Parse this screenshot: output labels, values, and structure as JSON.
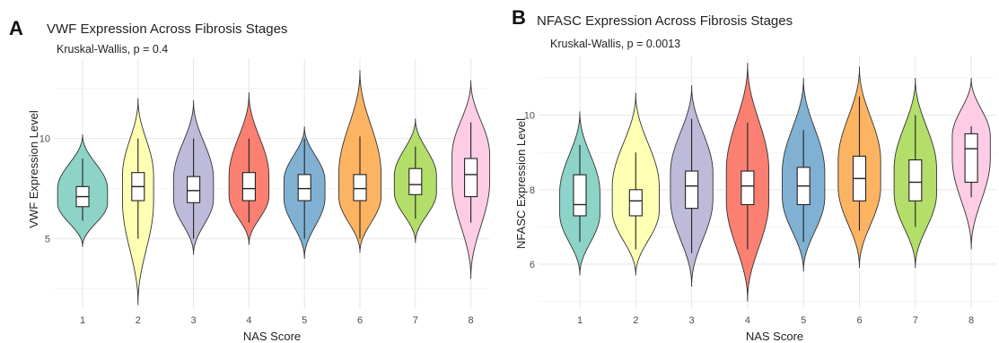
{
  "chart_data": [
    {
      "type": "violin",
      "panel_label": "A",
      "title": "VWF Expression Across Fibrosis Stages",
      "annotation": "Kruskal-Wallis, p = 0.4",
      "xlabel": "NAS Score",
      "ylabel": "VWF Expression Level",
      "categories": [
        "1",
        "2",
        "3",
        "4",
        "5",
        "6",
        "7",
        "8"
      ],
      "y_ticks": [
        5,
        10
      ],
      "ylim": [
        1.5,
        14
      ],
      "grid": true,
      "colors": [
        "#8dd3c7",
        "#ffffb3",
        "#bebada",
        "#fb8072",
        "#80b1d3",
        "#fdb462",
        "#b3de69",
        "#fccde5"
      ],
      "groups": [
        {
          "min": 4.6,
          "q1": 6.6,
          "median": 7.1,
          "q3": 7.6,
          "max": 10.2,
          "wlo": 5.9,
          "whi": 9.0,
          "mode": 7.1,
          "half_width": 0.45
        },
        {
          "min": 1.7,
          "q1": 6.9,
          "median": 7.6,
          "q3": 8.3,
          "max": 12.0,
          "wlo": 5.0,
          "whi": 10.0,
          "mode": 7.6,
          "half_width": 0.28
        },
        {
          "min": 4.2,
          "q1": 6.8,
          "median": 7.4,
          "q3": 8.1,
          "max": 11.9,
          "wlo": 5.0,
          "whi": 10.0,
          "mode": 7.4,
          "half_width": 0.36
        },
        {
          "min": 4.7,
          "q1": 6.9,
          "median": 7.5,
          "q3": 8.3,
          "max": 12.3,
          "wlo": 5.8,
          "whi": 10.0,
          "mode": 7.5,
          "half_width": 0.36
        },
        {
          "min": 4.0,
          "q1": 6.9,
          "median": 7.5,
          "q3": 8.2,
          "max": 10.6,
          "wlo": 5.0,
          "whi": 10.0,
          "mode": 7.5,
          "half_width": 0.37
        },
        {
          "min": 4.3,
          "q1": 6.9,
          "median": 7.5,
          "q3": 8.2,
          "max": 13.4,
          "wlo": 5.0,
          "whi": 10.1,
          "mode": 7.5,
          "half_width": 0.38
        },
        {
          "min": 4.8,
          "q1": 7.2,
          "median": 7.7,
          "q3": 8.5,
          "max": 11.0,
          "wlo": 6.0,
          "whi": 9.6,
          "mode": 7.7,
          "half_width": 0.38
        },
        {
          "min": 3.0,
          "q1": 7.1,
          "median": 8.2,
          "q3": 9.0,
          "max": 12.9,
          "wlo": 5.8,
          "whi": 10.8,
          "mode": 8.6,
          "half_width": 0.34
        }
      ]
    },
    {
      "type": "violin",
      "panel_label": "B",
      "title": "NFASC Expression Across Fibrosis Stages",
      "annotation": "Kruskal-Wallis, p = 0.0013",
      "xlabel": "NAS Score",
      "ylabel": "NFASC Expression Level",
      "categories": [
        "1",
        "2",
        "3",
        "4",
        "5",
        "6",
        "7",
        "8"
      ],
      "y_ticks": [
        6,
        8,
        10
      ],
      "ylim": [
        4.8,
        11.6
      ],
      "grid": true,
      "colors": [
        "#8dd3c7",
        "#ffffb3",
        "#bebada",
        "#fb8072",
        "#80b1d3",
        "#fdb462",
        "#b3de69",
        "#fccde5"
      ],
      "groups": [
        {
          "min": 5.7,
          "q1": 7.3,
          "median": 7.6,
          "q3": 8.4,
          "max": 10.1,
          "wlo": 6.6,
          "whi": 9.2,
          "mode": 7.6,
          "half_width": 0.36
        },
        {
          "min": 5.7,
          "q1": 7.3,
          "median": 7.7,
          "q3": 8.0,
          "max": 10.6,
          "wlo": 6.4,
          "whi": 9.0,
          "mode": 7.7,
          "half_width": 0.42
        },
        {
          "min": 5.4,
          "q1": 7.5,
          "median": 8.1,
          "q3": 8.5,
          "max": 10.8,
          "wlo": 6.3,
          "whi": 9.9,
          "mode": 8.1,
          "half_width": 0.38
        },
        {
          "min": 5.0,
          "q1": 7.6,
          "median": 8.1,
          "q3": 8.5,
          "max": 11.4,
          "wlo": 6.4,
          "whi": 9.8,
          "mode": 8.1,
          "half_width": 0.38
        },
        {
          "min": 5.8,
          "q1": 7.6,
          "median": 8.1,
          "q3": 8.6,
          "max": 11.0,
          "wlo": 6.6,
          "whi": 9.6,
          "mode": 8.1,
          "half_width": 0.38
        },
        {
          "min": 5.9,
          "q1": 7.7,
          "median": 8.3,
          "q3": 8.9,
          "max": 11.3,
          "wlo": 6.9,
          "whi": 10.5,
          "mode": 8.4,
          "half_width": 0.38
        },
        {
          "min": 5.9,
          "q1": 7.7,
          "median": 8.2,
          "q3": 8.8,
          "max": 11.0,
          "wlo": 7.0,
          "whi": 10.0,
          "mode": 8.2,
          "half_width": 0.38
        },
        {
          "min": 6.4,
          "q1": 8.2,
          "median": 9.1,
          "q3": 9.5,
          "max": 11.0,
          "wlo": 7.8,
          "whi": 9.7,
          "mode": 9.2,
          "half_width": 0.34
        }
      ]
    }
  ]
}
